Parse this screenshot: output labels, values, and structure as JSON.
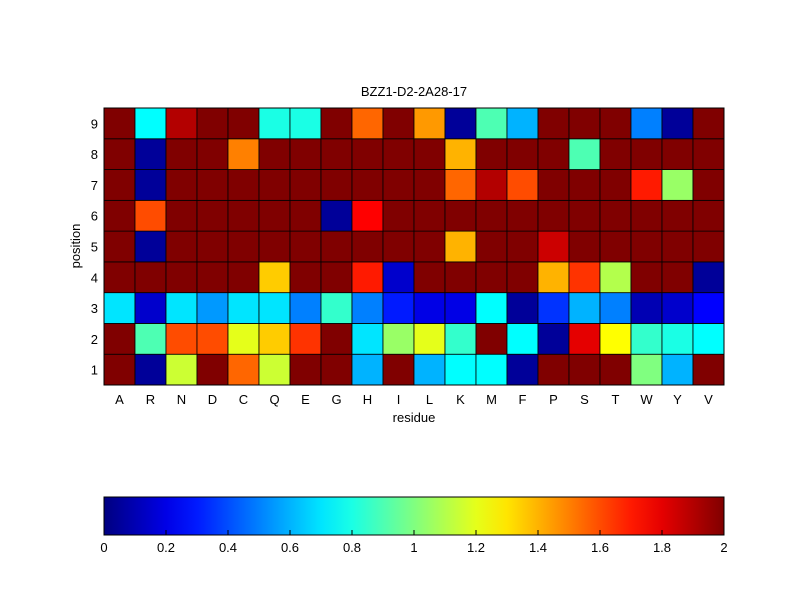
{
  "chart_data": {
    "type": "heatmap",
    "title": "BZZ1-D2-2A28-17",
    "xlabel": "residue",
    "ylabel": "position",
    "x_categories": [
      "A",
      "R",
      "N",
      "D",
      "C",
      "Q",
      "E",
      "G",
      "H",
      "I",
      "L",
      "K",
      "M",
      "F",
      "P",
      "S",
      "T",
      "W",
      "Y",
      "V"
    ],
    "y_categories": [
      "1",
      "2",
      "3",
      "4",
      "5",
      "6",
      "7",
      "8",
      "9"
    ],
    "colormap": "jet",
    "clim": [
      0,
      2
    ],
    "colorbar_ticks": [
      "0",
      "0.2",
      "0.4",
      "0.6",
      "0.8",
      "1",
      "1.2",
      "1.4",
      "1.6",
      "1.8",
      "2"
    ],
    "values": [
      [
        2.0,
        0.05,
        1.15,
        2.0,
        1.55,
        1.15,
        2.0,
        2.0,
        0.6,
        2.0,
        0.6,
        0.75,
        0.75,
        0.05,
        2.0,
        2.0,
        2.0,
        1.0,
        0.6,
        2.0
      ],
      [
        2.0,
        0.9,
        1.6,
        1.6,
        1.2,
        1.35,
        1.65,
        2.0,
        0.7,
        1.05,
        1.2,
        0.85,
        2.0,
        0.75,
        0.05,
        1.8,
        1.25,
        0.85,
        0.8,
        0.75
      ],
      [
        0.7,
        0.15,
        0.7,
        0.55,
        0.7,
        0.7,
        0.5,
        0.85,
        0.5,
        0.3,
        0.2,
        0.2,
        0.75,
        0.05,
        0.35,
        0.6,
        0.5,
        0.1,
        0.15,
        0.25
      ],
      [
        2.0,
        2.0,
        2.0,
        2.0,
        2.0,
        1.35,
        2.0,
        2.0,
        1.7,
        0.15,
        2.0,
        2.0,
        2.0,
        2.0,
        1.4,
        1.65,
        1.1,
        2.0,
        2.0,
        0.05
      ],
      [
        2.0,
        0.05,
        2.0,
        2.0,
        2.0,
        2.0,
        2.0,
        2.0,
        2.0,
        2.0,
        2.0,
        1.4,
        2.0,
        2.0,
        1.85,
        2.0,
        2.0,
        2.0,
        2.0,
        2.0
      ],
      [
        2.0,
        1.6,
        2.0,
        2.0,
        2.0,
        2.0,
        2.0,
        0.05,
        1.75,
        2.0,
        2.0,
        2.0,
        2.0,
        2.0,
        2.0,
        2.0,
        2.0,
        2.0,
        2.0,
        2.0
      ],
      [
        2.0,
        0.05,
        2.0,
        2.0,
        2.0,
        2.0,
        2.0,
        2.0,
        2.0,
        2.0,
        2.0,
        1.55,
        1.9,
        1.6,
        2.0,
        2.0,
        2.0,
        1.7,
        1.05,
        2.0
      ],
      [
        2.0,
        0.05,
        2.0,
        2.0,
        1.5,
        2.0,
        2.0,
        2.0,
        2.0,
        2.0,
        2.0,
        1.4,
        2.0,
        2.0,
        2.0,
        0.9,
        2.0,
        2.0,
        2.0,
        2.0
      ],
      [
        2.0,
        0.75,
        1.9,
        2.0,
        2.0,
        0.8,
        0.8,
        2.0,
        1.55,
        2.0,
        1.45,
        0.05,
        0.9,
        0.6,
        2.0,
        2.0,
        2.0,
        0.5,
        0.05,
        2.0
      ]
    ],
    "grid": false
  }
}
